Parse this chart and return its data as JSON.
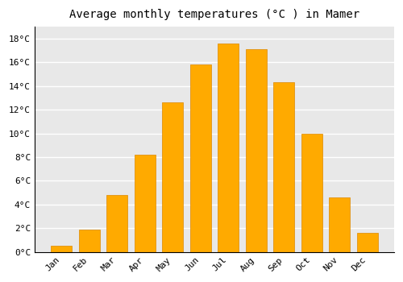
{
  "title": "Average monthly temperatures (°C ) in Mamer",
  "months": [
    "Jan",
    "Feb",
    "Mar",
    "Apr",
    "May",
    "Jun",
    "Jul",
    "Aug",
    "Sep",
    "Oct",
    "Nov",
    "Dec"
  ],
  "values": [
    0.5,
    1.9,
    4.8,
    8.2,
    12.6,
    15.8,
    17.6,
    17.1,
    14.3,
    10.0,
    4.6,
    1.6
  ],
  "bar_color": "#FFAA00",
  "bar_edge_color": "#DD8800",
  "ylim": [
    0,
    19
  ],
  "yticks": [
    0,
    2,
    4,
    6,
    8,
    10,
    12,
    14,
    16,
    18
  ],
  "plot_bg_color": "#E8E8E8",
  "fig_bg_color": "#FFFFFF",
  "grid_color": "#FFFFFF",
  "title_fontsize": 10,
  "tick_fontsize": 8,
  "bar_width": 0.75
}
